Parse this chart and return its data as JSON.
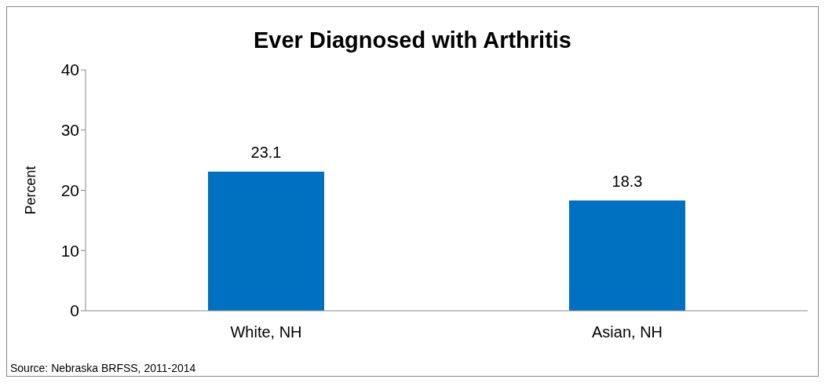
{
  "chart_data": {
    "type": "bar",
    "title": "Ever Diagnosed with Arthritis",
    "ylabel": "Percent",
    "categories": [
      "White, NH",
      "Asian, NH"
    ],
    "values": [
      23.1,
      18.3
    ],
    "color": "#0070c0",
    "ylim": [
      0,
      40
    ],
    "yticks": [
      0,
      10,
      20,
      30,
      40
    ],
    "data_labels": true,
    "grid": false,
    "annotations": [
      "Source: Nebraska BRFSS, 2011-2014"
    ]
  }
}
